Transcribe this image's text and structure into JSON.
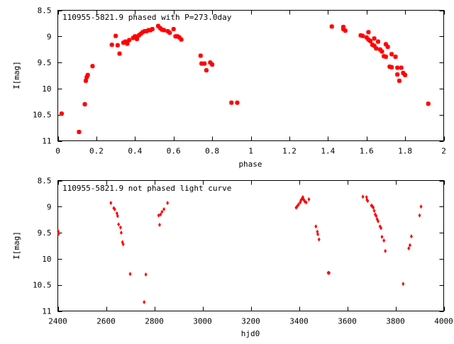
{
  "colors": {
    "points": "#ff0000",
    "axes": "#000000",
    "background": "#ffffff"
  },
  "chart_data": [
    {
      "type": "scatter",
      "title": "110955-5821.9 phased with P=273.0day",
      "xlabel": "phase",
      "ylabel": "I[mag]",
      "xlim": [
        0,
        2
      ],
      "ylim": [
        11,
        8.5
      ],
      "y_inverted": true,
      "grid": false,
      "xticks": [
        0,
        0.2,
        0.4,
        0.6,
        0.8,
        1,
        1.2,
        1.4,
        1.6,
        1.8,
        2
      ],
      "xtick_labels": [
        "0",
        "0.2",
        "0.4",
        "0.6",
        "0.8",
        "1",
        "1.2",
        "1.4",
        "1.6",
        "1.8",
        "2"
      ],
      "yticks": [
        8.5,
        9,
        9.5,
        10,
        10.5,
        11
      ],
      "ytick_labels": [
        "8.5",
        "9",
        "9.5",
        "10",
        "10.5",
        "11"
      ],
      "marker": "square",
      "points": [
        [
          0.02,
          10.48
        ],
        [
          0.11,
          10.83
        ],
        [
          0.14,
          10.3
        ],
        [
          0.145,
          9.85
        ],
        [
          0.15,
          9.78
        ],
        [
          0.155,
          9.74
        ],
        [
          0.18,
          9.57
        ],
        [
          0.28,
          9.16
        ],
        [
          0.3,
          8.99
        ],
        [
          0.31,
          9.17
        ],
        [
          0.32,
          9.33
        ],
        [
          0.34,
          9.12
        ],
        [
          0.35,
          9.1
        ],
        [
          0.36,
          9.14
        ],
        [
          0.37,
          9.07
        ],
        [
          0.39,
          9.03
        ],
        [
          0.4,
          9.0
        ],
        [
          0.41,
          9.05
        ],
        [
          0.42,
          8.98
        ],
        [
          0.43,
          8.95
        ],
        [
          0.44,
          8.92
        ],
        [
          0.45,
          8.9
        ],
        [
          0.46,
          8.9
        ],
        [
          0.47,
          8.88
        ],
        [
          0.48,
          8.88
        ],
        [
          0.49,
          8.86
        ],
        [
          0.52,
          8.8
        ],
        [
          0.53,
          8.84
        ],
        [
          0.54,
          8.87
        ],
        [
          0.55,
          8.88
        ],
        [
          0.57,
          8.9
        ],
        [
          0.58,
          8.93
        ],
        [
          0.6,
          8.86
        ],
        [
          0.61,
          9.0
        ],
        [
          0.62,
          9.0
        ],
        [
          0.63,
          9.02
        ],
        [
          0.64,
          9.06
        ],
        [
          0.74,
          9.37
        ],
        [
          0.745,
          9.52
        ],
        [
          0.76,
          9.52
        ],
        [
          0.77,
          9.65
        ],
        [
          0.79,
          9.5
        ],
        [
          0.8,
          9.54
        ],
        [
          0.9,
          10.27
        ],
        [
          0.93,
          10.27
        ],
        [
          1.42,
          8.81
        ],
        [
          1.48,
          8.82
        ],
        [
          1.48,
          8.86
        ],
        [
          1.49,
          8.89
        ],
        [
          1.57,
          8.98
        ],
        [
          1.58,
          8.99
        ],
        [
          1.6,
          9.02
        ],
        [
          1.61,
          8.92
        ],
        [
          1.61,
          9.06
        ],
        [
          1.62,
          9.09
        ],
        [
          1.63,
          9.16
        ],
        [
          1.64,
          9.04
        ],
        [
          1.64,
          9.18
        ],
        [
          1.65,
          9.23
        ],
        [
          1.66,
          9.1
        ],
        [
          1.67,
          9.25
        ],
        [
          1.68,
          9.29
        ],
        [
          1.69,
          9.38
        ],
        [
          1.7,
          9.39
        ],
        [
          1.7,
          9.15
        ],
        [
          1.71,
          9.2
        ],
        [
          1.72,
          9.58
        ],
        [
          1.73,
          9.34
        ],
        [
          1.73,
          9.59
        ],
        [
          1.75,
          9.39
        ],
        [
          1.76,
          9.6
        ],
        [
          1.76,
          9.73
        ],
        [
          1.77,
          9.85
        ],
        [
          1.78,
          9.6
        ],
        [
          1.79,
          9.7
        ],
        [
          1.8,
          9.74
        ],
        [
          1.92,
          10.29
        ]
      ]
    },
    {
      "type": "scatter",
      "title": "110955-5821.9 not phased light curve",
      "xlabel": "hjd0",
      "ylabel": "I[mag]",
      "xlim": [
        2400,
        4000
      ],
      "ylim": [
        11,
        8.5
      ],
      "y_inverted": true,
      "grid": false,
      "xticks": [
        2400,
        2600,
        2800,
        3000,
        3200,
        3400,
        3600,
        3800,
        4000
      ],
      "xtick_labels": [
        "2400",
        "2600",
        "2800",
        "3000",
        "3200",
        "3400",
        "3600",
        "3800",
        "4000"
      ],
      "yticks": [
        8.5,
        9,
        9.5,
        10,
        10.5,
        11
      ],
      "ytick_labels": [
        "8.5",
        "9",
        "9.5",
        "10",
        "10.5",
        "11"
      ],
      "marker": "diamond",
      "points": [
        [
          2402,
          9.48
        ],
        [
          2403,
          9.52
        ],
        [
          2620,
          8.93
        ],
        [
          2632,
          9.03
        ],
        [
          2636,
          9.05
        ],
        [
          2645,
          9.13
        ],
        [
          2648,
          9.18
        ],
        [
          2652,
          9.34
        ],
        [
          2660,
          9.4
        ],
        [
          2663,
          9.5
        ],
        [
          2668,
          9.68
        ],
        [
          2671,
          9.72
        ],
        [
          2700,
          10.29
        ],
        [
          2758,
          10.83
        ],
        [
          2765,
          10.3
        ],
        [
          2818,
          9.17
        ],
        [
          2822,
          9.35
        ],
        [
          2826,
          9.15
        ],
        [
          2832,
          9.1
        ],
        [
          2840,
          9.05
        ],
        [
          2855,
          8.93
        ],
        [
          3388,
          9.02
        ],
        [
          3392,
          9.0
        ],
        [
          3398,
          8.96
        ],
        [
          3405,
          8.92
        ],
        [
          3408,
          8.88
        ],
        [
          3412,
          8.85
        ],
        [
          3416,
          8.82
        ],
        [
          3420,
          8.87
        ],
        [
          3424,
          8.9
        ],
        [
          3430,
          8.92
        ],
        [
          3441,
          8.86
        ],
        [
          3470,
          9.38
        ],
        [
          3476,
          9.48
        ],
        [
          3478,
          9.53
        ],
        [
          3483,
          9.63
        ],
        [
          3521,
          10.27
        ],
        [
          3525,
          10.27
        ],
        [
          3665,
          8.81
        ],
        [
          3680,
          8.82
        ],
        [
          3682,
          8.87
        ],
        [
          3685,
          8.89
        ],
        [
          3700,
          8.98
        ],
        [
          3704,
          8.99
        ],
        [
          3708,
          9.02
        ],
        [
          3712,
          9.08
        ],
        [
          3716,
          9.15
        ],
        [
          3720,
          9.18
        ],
        [
          3724,
          9.24
        ],
        [
          3728,
          9.28
        ],
        [
          3736,
          9.38
        ],
        [
          3740,
          9.41
        ],
        [
          3744,
          9.58
        ],
        [
          3752,
          9.65
        ],
        [
          3758,
          9.85
        ],
        [
          3832,
          10.48
        ],
        [
          3855,
          9.8
        ],
        [
          3860,
          9.74
        ],
        [
          3866,
          9.57
        ],
        [
          3900,
          9.17
        ],
        [
          3906,
          9.0
        ]
      ]
    }
  ]
}
